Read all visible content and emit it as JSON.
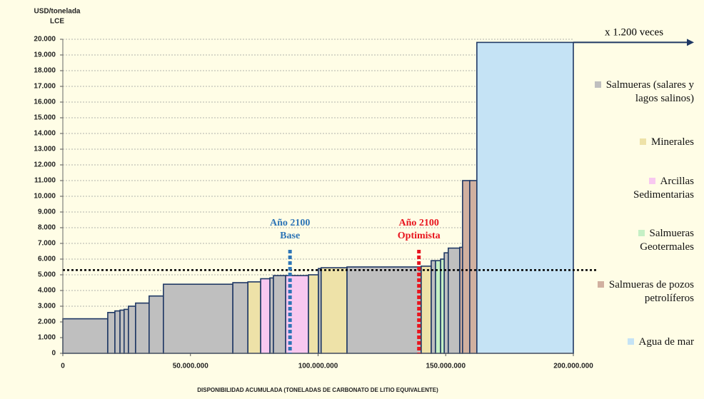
{
  "chart_data": {
    "type": "cost-curve",
    "y_label": [
      "USD/tonelada",
      "LCE"
    ],
    "x_label": "DISPONIBILIDAD ACUMULADA (TONELADAS DE CARBONATO DE LITIO EQUIVALENTE)",
    "xlim": [
      0,
      200000000
    ],
    "ylim": [
      0,
      20000
    ],
    "xticks": [
      0,
      {
        "value": 50000000,
        "label": "50.000.000"
      },
      {
        "value": 100000000,
        "label": "100.000.000"
      },
      {
        "value": 150000000,
        "label": "150.000.000"
      },
      {
        "value": 200000000,
        "label": "200.000.000"
      }
    ],
    "yticks": [
      0,
      {
        "value": 1000,
        "label": "1.000"
      },
      {
        "value": 2000,
        "label": "2.000"
      },
      {
        "value": 3000,
        "label": "3.000"
      },
      {
        "value": 4000,
        "label": "4.000"
      },
      {
        "value": 5000,
        "label": "5.000"
      },
      {
        "value": 6000,
        "label": "6.000"
      },
      {
        "value": 7000,
        "label": "7.000"
      },
      {
        "value": 8000,
        "label": "8.000"
      },
      {
        "value": 9000,
        "label": "9.000"
      },
      {
        "value": 10000,
        "label": "10.000"
      },
      {
        "value": 11000,
        "label": "11.000"
      },
      {
        "value": 12000,
        "label": "12.000"
      },
      {
        "value": 13000,
        "label": "13.000"
      },
      {
        "value": 14000,
        "label": "14.000"
      },
      {
        "value": 15000,
        "label": "15.000"
      },
      {
        "value": 16000,
        "label": "16.000"
      },
      {
        "value": 17000,
        "label": "17.000"
      },
      {
        "value": 18000,
        "label": "18.000"
      },
      {
        "value": 19000,
        "label": "19.000"
      },
      {
        "value": 20000,
        "label": "20.000"
      }
    ],
    "grid": true,
    "outline_color": "#1f3864",
    "series": [
      {
        "name": "Salmueras (salares y lagos salinos)",
        "color": "#bfbfbf",
        "x0": [
          0,
          17600000,
          20400000,
          22400000,
          24000000,
          25700000,
          28500000,
          33800000,
          39400000,
          66600000,
          81100000,
          82500000,
          100100000,
          111300000,
          144300000,
          149400000,
          151000000
        ],
        "x1": [
          17600000,
          20400000,
          22400000,
          24000000,
          25700000,
          28500000,
          33800000,
          39400000,
          66600000,
          72500000,
          82500000,
          87300000,
          101200000,
          140400000,
          146000000,
          151000000,
          155500000
        ],
        "values": [
          2200,
          2600,
          2700,
          2750,
          2800,
          3000,
          3200,
          3650,
          4400,
          4500,
          4800,
          4950,
          5400,
          5500,
          5900,
          6400,
          6700
        ]
      },
      {
        "name": "Minerales",
        "color": "#eee2a8",
        "x0": [
          72500000,
          96200000,
          101200000,
          140400000
        ],
        "x1": [
          77500000,
          100100000,
          111300000,
          144300000
        ],
        "values": [
          4550,
          5000,
          5450,
          5550
        ]
      },
      {
        "name": "Arcillas Sedimentarias",
        "color": "#f8c8f0",
        "x0": [
          77500000,
          87300000
        ],
        "x1": [
          81100000,
          96200000
        ],
        "values": [
          4750,
          4950
        ]
      },
      {
        "name": "Salmueras Geotermales",
        "color": "#c5f0c5",
        "x0": [
          146000000,
          148000000
        ],
        "x1": [
          148000000,
          149400000
        ],
        "values": [
          5900,
          6000
        ]
      },
      {
        "name": "Salmueras de pozos petrolíferos",
        "color": "#d1b0a0",
        "x0": [
          155500000,
          156600000,
          159400000
        ],
        "x1": [
          156600000,
          159400000,
          162200000
        ],
        "values": [
          6750,
          11000,
          11000
        ]
      },
      {
        "name": "Agua de mar",
        "color": "#c5e3f5",
        "x0": [
          162200000
        ],
        "x1": [
          200000000
        ],
        "values": [
          19800
        ]
      }
    ],
    "reference_line": 5300,
    "annotations": [
      {
        "lines": [
          "Año 2100",
          "Base"
        ],
        "x": 89000000,
        "color": "#2e75b6"
      },
      {
        "lines": [
          "Año 2100",
          "Optimista"
        ],
        "x": 139500000,
        "color": "#e8141e"
      }
    ],
    "arrow_label": "x 1.200 veces"
  }
}
